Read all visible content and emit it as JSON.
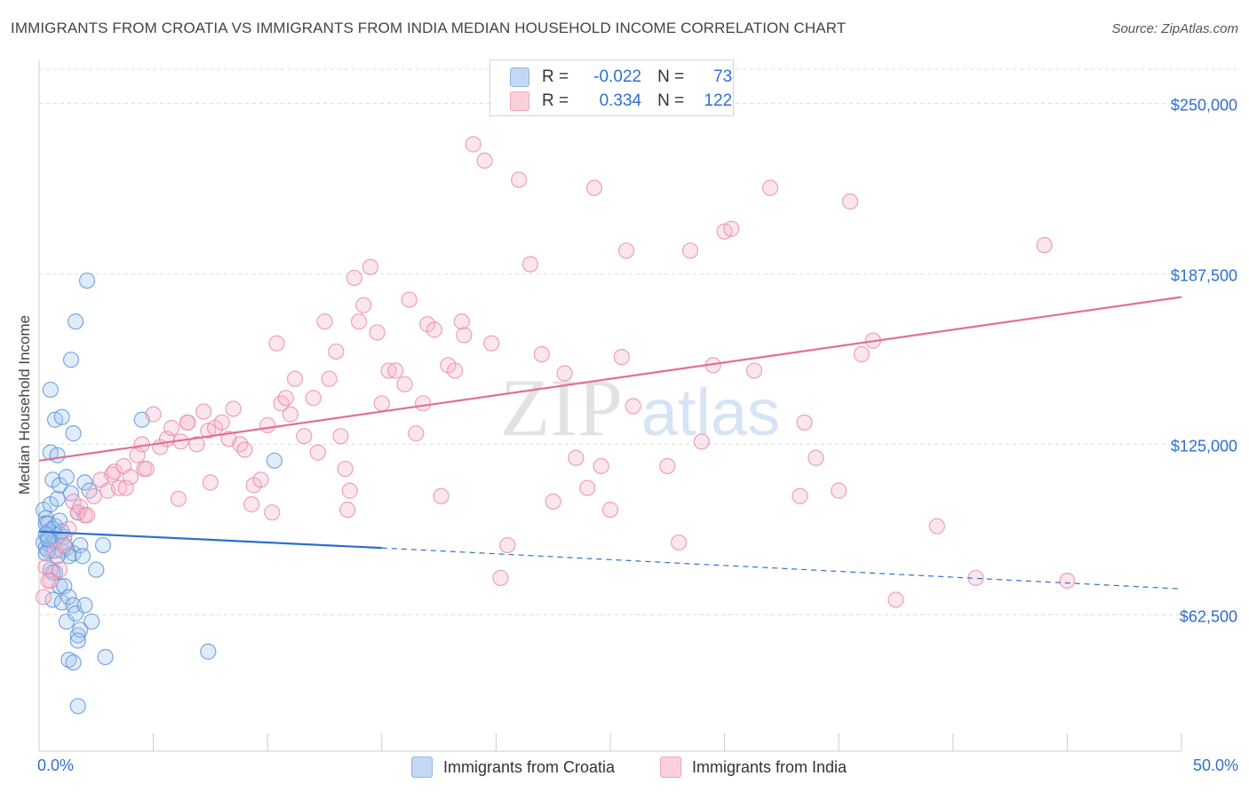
{
  "title": "IMMIGRANTS FROM CROATIA VS IMMIGRANTS FROM INDIA MEDIAN HOUSEHOLD INCOME CORRELATION CHART",
  "source": "Source: ZipAtlas.com",
  "watermark": {
    "zip": "ZIP",
    "atlas": "atlas"
  },
  "legend": {
    "r_label": "R =",
    "n_label": "N =",
    "rows": [
      {
        "r": "-0.022",
        "n": "73",
        "color": "#a9c8f0"
      },
      {
        "r": "0.334",
        "n": "122",
        "color": "#f7b8cb"
      }
    ]
  },
  "chart_data": {
    "type": "scatter",
    "ylabel": "Median Household Income",
    "xlim": [
      0,
      50
    ],
    "ylim": [
      12500,
      262500
    ],
    "x_tick_labels": [
      "0.0%",
      "50.0%"
    ],
    "y_ticks": [
      {
        "value": 62500,
        "label": "$62,500"
      },
      {
        "value": 125000,
        "label": "$125,000"
      },
      {
        "value": 187500,
        "label": "$187,500"
      },
      {
        "value": 250000,
        "label": "$250,000"
      }
    ],
    "grid": true,
    "legend_position": "bottom",
    "series": [
      {
        "name": "Immigrants from Croatia",
        "color": "#5b93d9",
        "fill": "#a9c8f0",
        "trend": {
          "x0": 0,
          "y0": 93000,
          "x1": 15,
          "y1": 87000,
          "dash_to_x": 50,
          "dash_to_y": 72000,
          "color": "#2b6fcf"
        },
        "points": [
          [
            0.2,
            101000
          ],
          [
            0.3,
            98000
          ],
          [
            0.3,
            96000
          ],
          [
            0.4,
            93000
          ],
          [
            0.2,
            89000
          ],
          [
            0.3,
            87000
          ],
          [
            0.4,
            91000
          ],
          [
            0.5,
            88000
          ],
          [
            0.6,
            92000
          ],
          [
            0.6,
            86000
          ],
          [
            0.7,
            95000
          ],
          [
            0.5,
            103000
          ],
          [
            0.8,
            105000
          ],
          [
            0.9,
            92000
          ],
          [
            0.7,
            90000
          ],
          [
            1.0,
            86000
          ],
          [
            1.1,
            91000
          ],
          [
            1.2,
            87000
          ],
          [
            0.4,
            86000
          ],
          [
            0.5,
            122000
          ],
          [
            0.6,
            112000
          ],
          [
            0.8,
            121000
          ],
          [
            0.9,
            110000
          ],
          [
            1.2,
            113000
          ],
          [
            1.4,
            107000
          ],
          [
            1.5,
            85000
          ],
          [
            1.7,
            100000
          ],
          [
            1.8,
            88000
          ],
          [
            2.0,
            111000
          ],
          [
            0.7,
            78000
          ],
          [
            0.6,
            68000
          ],
          [
            0.9,
            73000
          ],
          [
            1.0,
            67000
          ],
          [
            1.1,
            73000
          ],
          [
            1.2,
            60000
          ],
          [
            1.3,
            69000
          ],
          [
            1.5,
            66000
          ],
          [
            1.6,
            63000
          ],
          [
            1.7,
            55000
          ],
          [
            1.8,
            57000
          ],
          [
            2.0,
            66000
          ],
          [
            2.3,
            60000
          ],
          [
            2.5,
            79000
          ],
          [
            1.3,
            46000
          ],
          [
            1.5,
            45000
          ],
          [
            1.7,
            53000
          ],
          [
            2.9,
            47000
          ],
          [
            7.4,
            49000
          ],
          [
            1.7,
            29000
          ],
          [
            0.5,
            145000
          ],
          [
            0.7,
            134000
          ],
          [
            1.0,
            135000
          ],
          [
            1.5,
            129000
          ],
          [
            1.4,
            156000
          ],
          [
            1.6,
            170000
          ],
          [
            2.1,
            185000
          ],
          [
            4.5,
            134000
          ],
          [
            10.3,
            119000
          ],
          [
            2.8,
            88000
          ],
          [
            0.4,
            96000
          ],
          [
            0.3,
            85000
          ],
          [
            0.6,
            94000
          ],
          [
            0.9,
            97000
          ],
          [
            1.1,
            88000
          ],
          [
            1.3,
            84000
          ],
          [
            0.5,
            79000
          ],
          [
            0.8,
            84000
          ],
          [
            1.0,
            93000
          ],
          [
            0.3,
            92000
          ],
          [
            0.4,
            90000
          ],
          [
            1.9,
            84000
          ],
          [
            2.2,
            108000
          ],
          [
            0.6,
            78000
          ]
        ]
      },
      {
        "name": "Immigrants from India",
        "color": "#ea8aa9",
        "fill": "#f7b8cb",
        "trend": {
          "x0": 0,
          "y0": 119000,
          "x1": 50,
          "y1": 179000,
          "color": "#e26f97"
        },
        "points": [
          [
            0.2,
            69000
          ],
          [
            0.3,
            80000
          ],
          [
            0.5,
            75000
          ],
          [
            0.7,
            86000
          ],
          [
            0.9,
            79000
          ],
          [
            1.1,
            88000
          ],
          [
            1.3,
            94000
          ],
          [
            1.5,
            104000
          ],
          [
            1.7,
            100000
          ],
          [
            1.8,
            102000
          ],
          [
            2.0,
            99000
          ],
          [
            2.4,
            106000
          ],
          [
            2.7,
            112000
          ],
          [
            3.0,
            108000
          ],
          [
            3.2,
            114000
          ],
          [
            3.5,
            109000
          ],
          [
            3.3,
            115000
          ],
          [
            3.7,
            117000
          ],
          [
            4.0,
            113000
          ],
          [
            4.3,
            121000
          ],
          [
            4.5,
            125000
          ],
          [
            4.6,
            116000
          ],
          [
            4.7,
            116000
          ],
          [
            5.0,
            136000
          ],
          [
            5.3,
            124000
          ],
          [
            5.6,
            127000
          ],
          [
            5.8,
            131000
          ],
          [
            6.1,
            105000
          ],
          [
            6.2,
            126000
          ],
          [
            6.5,
            133000
          ],
          [
            6.9,
            125000
          ],
          [
            7.2,
            137000
          ],
          [
            7.4,
            130000
          ],
          [
            7.5,
            111000
          ],
          [
            7.7,
            131000
          ],
          [
            8.0,
            133000
          ],
          [
            8.3,
            127000
          ],
          [
            8.5,
            138000
          ],
          [
            8.8,
            125000
          ],
          [
            9.0,
            123000
          ],
          [
            9.3,
            103000
          ],
          [
            9.4,
            110000
          ],
          [
            9.7,
            112000
          ],
          [
            10.0,
            132000
          ],
          [
            10.2,
            100000
          ],
          [
            10.4,
            162000
          ],
          [
            10.6,
            140000
          ],
          [
            10.8,
            142000
          ],
          [
            11.0,
            136000
          ],
          [
            11.2,
            149000
          ],
          [
            11.6,
            128000
          ],
          [
            12.0,
            142000
          ],
          [
            12.2,
            122000
          ],
          [
            12.5,
            170000
          ],
          [
            12.7,
            149000
          ],
          [
            13.0,
            159000
          ],
          [
            13.2,
            128000
          ],
          [
            13.4,
            116000
          ],
          [
            13.5,
            101000
          ],
          [
            13.6,
            108000
          ],
          [
            13.8,
            186000
          ],
          [
            14.0,
            170000
          ],
          [
            14.2,
            176000
          ],
          [
            14.5,
            190000
          ],
          [
            14.8,
            166000
          ],
          [
            15.0,
            140000
          ],
          [
            15.3,
            152000
          ],
          [
            15.6,
            152000
          ],
          [
            16.0,
            147000
          ],
          [
            16.2,
            178000
          ],
          [
            16.5,
            129000
          ],
          [
            16.8,
            140000
          ],
          [
            17.0,
            169000
          ],
          [
            17.3,
            167000
          ],
          [
            17.6,
            106000
          ],
          [
            17.9,
            154000
          ],
          [
            18.2,
            152000
          ],
          [
            18.5,
            170000
          ],
          [
            18.6,
            165000
          ],
          [
            19.0,
            235000
          ],
          [
            19.5,
            229000
          ],
          [
            19.8,
            162000
          ],
          [
            20.2,
            76000
          ],
          [
            20.5,
            88000
          ],
          [
            21.0,
            222000
          ],
          [
            21.5,
            191000
          ],
          [
            22.0,
            158000
          ],
          [
            22.5,
            104000
          ],
          [
            23.0,
            151000
          ],
          [
            23.5,
            120000
          ],
          [
            24.0,
            109000
          ],
          [
            24.3,
            219000
          ],
          [
            24.6,
            117000
          ],
          [
            25.0,
            101000
          ],
          [
            25.5,
            157000
          ],
          [
            25.7,
            196000
          ],
          [
            26.0,
            139000
          ],
          [
            27.5,
            117000
          ],
          [
            28.0,
            89000
          ],
          [
            28.5,
            196000
          ],
          [
            29.0,
            126000
          ],
          [
            29.5,
            154000
          ],
          [
            30.0,
            203000
          ],
          [
            30.3,
            204000
          ],
          [
            31.3,
            152000
          ],
          [
            32.0,
            219000
          ],
          [
            33.3,
            106000
          ],
          [
            33.5,
            133000
          ],
          [
            34.0,
            120000
          ],
          [
            35.0,
            108000
          ],
          [
            35.5,
            214000
          ],
          [
            36.0,
            158000
          ],
          [
            36.5,
            163000
          ],
          [
            37.5,
            68000
          ],
          [
            39.3,
            95000
          ],
          [
            41.0,
            76000
          ],
          [
            44.0,
            198000
          ],
          [
            45.0,
            75000
          ],
          [
            0.4,
            75000
          ],
          [
            2.1,
            99000
          ],
          [
            3.8,
            109000
          ],
          [
            6.5,
            133000
          ]
        ]
      }
    ]
  }
}
